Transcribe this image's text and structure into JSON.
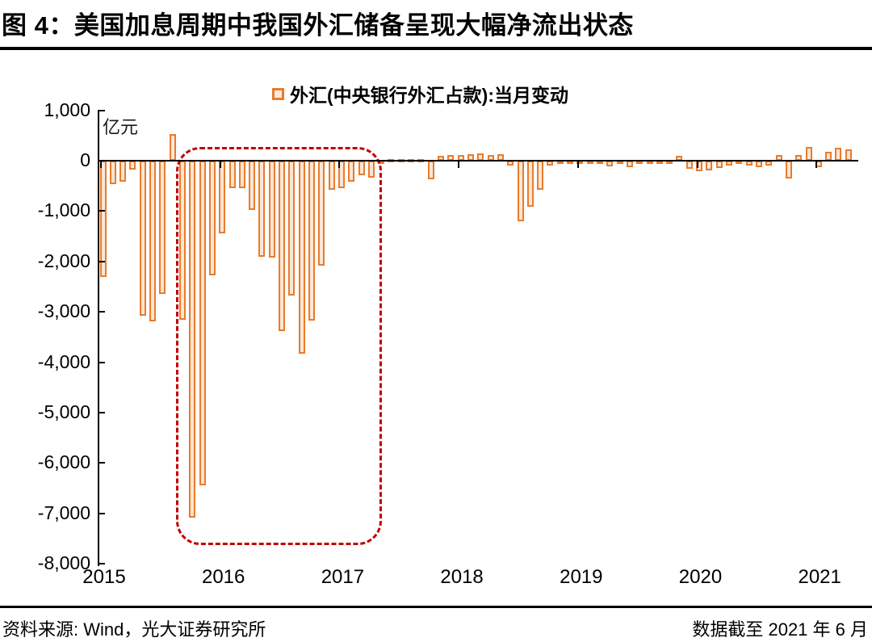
{
  "title": "图 4：美国加息周期中我国外汇储备呈现大幅净流出状态",
  "footer": {
    "source": "资料来源: Wind，光大证券研究所",
    "note": "数据截至 2021 年 6 月"
  },
  "chart_data": {
    "type": "bar",
    "legend": "外汇(中央银行外汇占款):当月变动",
    "unit_label": "亿元",
    "ylim": [
      -8000,
      1000
    ],
    "grid": false,
    "legend_position": "top-center",
    "colors": {
      "bar_border": "#e87c2c",
      "bar_fill": "#fae6d6",
      "highlight_box": "#c00000",
      "axis": "#000000"
    },
    "y_ticks": [
      {
        "label": "1,000",
        "value": 1000
      },
      {
        "label": "0",
        "value": 0
      },
      {
        "label": "-1,000",
        "value": -1000
      },
      {
        "label": "-2,000",
        "value": -2000
      },
      {
        "label": "-3,000",
        "value": -3000
      },
      {
        "label": "-4,000",
        "value": -4000
      },
      {
        "label": "-5,000",
        "value": -5000
      },
      {
        "label": "-6,000",
        "value": -6000
      },
      {
        "label": "-7,000",
        "value": -7000
      },
      {
        "label": "-8,000",
        "value": -8000
      }
    ],
    "x_tick_labels": [
      "2015",
      "2016",
      "2017",
      "2018",
      "2019",
      "2020",
      "2021"
    ],
    "months": [
      "2015-03",
      "2015-04",
      "2015-05",
      "2015-06",
      "2015-07",
      "2015-08",
      "2015-09",
      "2015-10",
      "2015-11",
      "2015-12",
      "2016-01",
      "2016-02",
      "2016-03",
      "2016-04",
      "2016-05",
      "2016-06",
      "2016-07",
      "2016-08",
      "2016-09",
      "2016-10",
      "2016-11",
      "2016-12",
      "2017-01",
      "2017-02",
      "2017-03",
      "2017-04",
      "2017-05",
      "2017-06",
      "2017-07",
      "2017-08",
      "2017-09",
      "2017-10",
      "2017-11",
      "2017-12",
      "2018-01",
      "2018-02",
      "2018-03",
      "2018-04",
      "2018-05",
      "2018-06",
      "2018-07",
      "2018-08",
      "2018-09",
      "2018-10",
      "2018-11",
      "2018-12",
      "2019-01",
      "2019-02",
      "2019-03",
      "2019-04",
      "2019-05",
      "2019-06",
      "2019-07",
      "2019-08",
      "2019-09",
      "2019-10",
      "2019-11",
      "2019-12",
      "2020-01",
      "2020-02",
      "2020-03",
      "2020-04",
      "2020-05",
      "2020-06",
      "2020-07",
      "2020-08",
      "2020-09",
      "2020-10",
      "2020-11",
      "2020-12",
      "2021-01",
      "2021-02",
      "2021-03",
      "2021-04",
      "2021-05",
      "2021-06"
    ],
    "values": [
      -2300,
      -460,
      -420,
      -175,
      -3080,
      -3184,
      -2641,
      533,
      -3158,
      -7082,
      -6445,
      -2279,
      -1448,
      -544,
      -537,
      -977,
      -1905,
      -1919,
      -3375,
      -2678,
      -3827,
      -3178,
      -2088,
      -581,
      -547,
      -420,
      -293,
      -343,
      -46,
      9,
      9,
      21,
      24,
      -363,
      95,
      105,
      120,
      130,
      145,
      115,
      130,
      -95,
      -1194,
      -916,
      -571,
      -90,
      -30,
      -15,
      -15,
      -60,
      -25,
      -115,
      -30,
      -125,
      -25,
      -20,
      -55,
      -20,
      100,
      -160,
      -215,
      -200,
      -150,
      -90,
      -65,
      -90,
      -135,
      -90,
      105,
      -360,
      120,
      265,
      -135,
      170,
      250,
      230
    ],
    "highlight_box": {
      "start_month": "2015-11",
      "end_month": "2017-07",
      "style": "dashed-rounded-rect",
      "color": "#c00000"
    }
  }
}
